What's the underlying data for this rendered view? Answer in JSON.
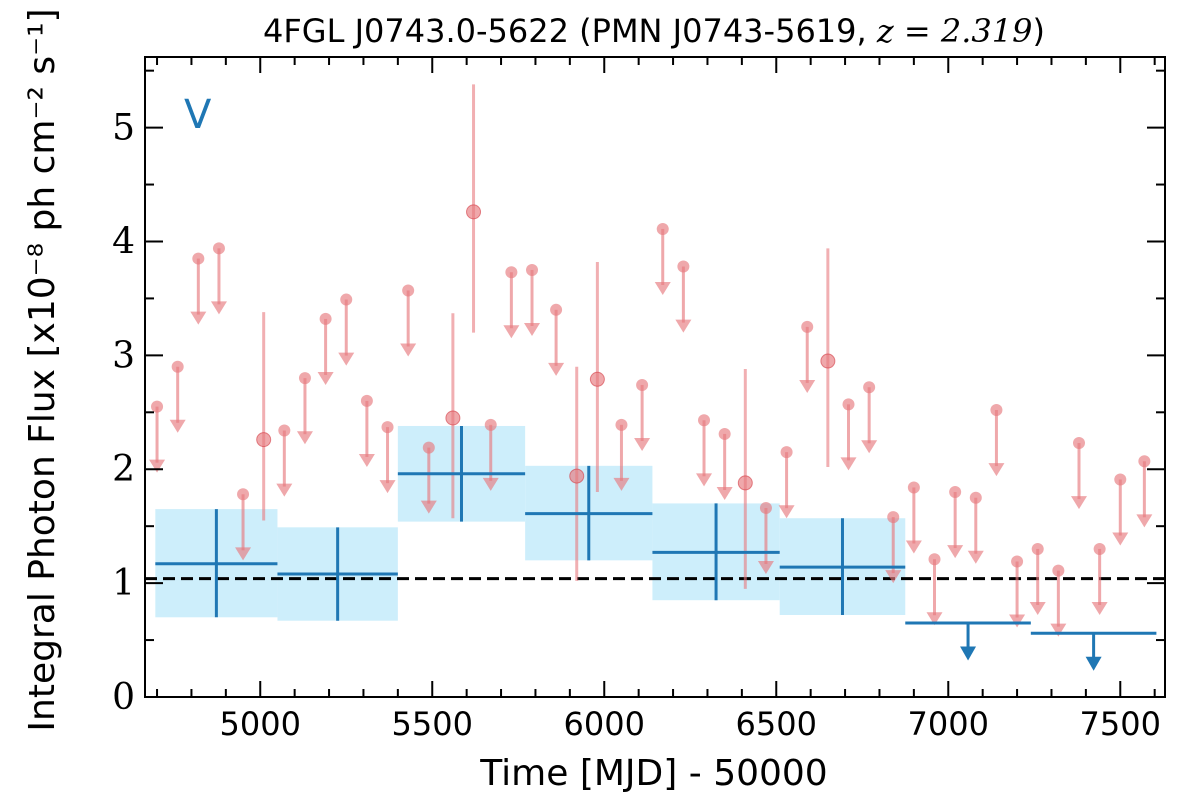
{
  "chart_data": {
    "type": "scatter",
    "title_prefix": "4FGL J0743.0-5622 (PMN J0743-5619, ",
    "title_math": "z = 2.319",
    "title_suffix": ")",
    "xlabel": "Time [MJD] - 50000",
    "ylabel": "Integral Photon Flux [x10⁻⁸ ph cm⁻² s⁻¹]",
    "panel_label": "V",
    "xlim": [
      4665,
      7630
    ],
    "ylim": [
      0,
      5.62
    ],
    "xticks": [
      5000,
      5500,
      6000,
      6500,
      7000,
      7500
    ],
    "xtick_labels": [
      "5000",
      "5500",
      "6000",
      "6500",
      "7000",
      "7500"
    ],
    "yticks": [
      0,
      1,
      2,
      3,
      4,
      5
    ],
    "ytick_labels": [
      "0",
      "1",
      "2",
      "3",
      "4",
      "5"
    ],
    "mean_flux": 1.04,
    "colors": {
      "short_bins": "#e77a7e",
      "long_bins": "#1f77b4",
      "long_band": "#cdeefb",
      "mean_line": "#000000"
    },
    "short_bins_upper_limits": [
      {
        "x": 4700,
        "y": 2.55
      },
      {
        "x": 4760,
        "y": 2.9
      },
      {
        "x": 4820,
        "y": 3.85
      },
      {
        "x": 4880,
        "y": 3.94
      },
      {
        "x": 4950,
        "y": 1.78
      },
      {
        "x": 5070,
        "y": 2.34
      },
      {
        "x": 5130,
        "y": 2.8
      },
      {
        "x": 5190,
        "y": 3.32
      },
      {
        "x": 5250,
        "y": 3.49
      },
      {
        "x": 5310,
        "y": 2.6
      },
      {
        "x": 5370,
        "y": 2.37
      },
      {
        "x": 5430,
        "y": 3.57
      },
      {
        "x": 5490,
        "y": 2.19
      },
      {
        "x": 5670,
        "y": 2.39
      },
      {
        "x": 5730,
        "y": 3.73
      },
      {
        "x": 5790,
        "y": 3.75
      },
      {
        "x": 5860,
        "y": 3.4
      },
      {
        "x": 6050,
        "y": 2.39
      },
      {
        "x": 6110,
        "y": 2.74
      },
      {
        "x": 6170,
        "y": 4.11
      },
      {
        "x": 6230,
        "y": 3.78
      },
      {
        "x": 6290,
        "y": 2.43
      },
      {
        "x": 6350,
        "y": 2.31
      },
      {
        "x": 6470,
        "y": 1.66
      },
      {
        "x": 6530,
        "y": 2.15
      },
      {
        "x": 6590,
        "y": 3.25
      },
      {
        "x": 6710,
        "y": 2.57
      },
      {
        "x": 6770,
        "y": 2.72
      },
      {
        "x": 6840,
        "y": 1.58
      },
      {
        "x": 6900,
        "y": 1.84
      },
      {
        "x": 6960,
        "y": 1.21
      },
      {
        "x": 7020,
        "y": 1.8
      },
      {
        "x": 7080,
        "y": 1.75
      },
      {
        "x": 7140,
        "y": 2.52
      },
      {
        "x": 7200,
        "y": 1.19
      },
      {
        "x": 7260,
        "y": 1.3
      },
      {
        "x": 7320,
        "y": 1.11
      },
      {
        "x": 7380,
        "y": 2.23
      },
      {
        "x": 7440,
        "y": 1.3
      },
      {
        "x": 7500,
        "y": 1.91
      },
      {
        "x": 7570,
        "y": 2.07
      }
    ],
    "short_bins_detections": [
      {
        "x": 5010,
        "y": 2.26,
        "ylo": 1.55,
        "yhi": 3.38
      },
      {
        "x": 5560,
        "y": 2.45,
        "ylo": 1.57,
        "yhi": 3.37
      },
      {
        "x": 5620,
        "y": 4.26,
        "ylo": 3.2,
        "yhi": 5.38
      },
      {
        "x": 5920,
        "y": 1.94,
        "ylo": 1.02,
        "yhi": 2.9
      },
      {
        "x": 5980,
        "y": 2.79,
        "ylo": 1.8,
        "yhi": 3.82
      },
      {
        "x": 6410,
        "y": 1.88,
        "ylo": 0.95,
        "yhi": 2.88
      },
      {
        "x": 6650,
        "y": 2.95,
        "ylo": 2.02,
        "yhi": 3.94
      }
    ],
    "long_bins": [
      {
        "x0": 4695,
        "x1": 5050,
        "y": 1.17,
        "ylo": 0.7,
        "yhi": 1.65
      },
      {
        "x0": 5050,
        "x1": 5400,
        "y": 1.08,
        "ylo": 0.67,
        "yhi": 1.49
      },
      {
        "x0": 5400,
        "x1": 5770,
        "y": 1.96,
        "ylo": 1.54,
        "yhi": 2.38
      },
      {
        "x0": 5770,
        "x1": 6140,
        "y": 1.61,
        "ylo": 1.2,
        "yhi": 2.03
      },
      {
        "x0": 6140,
        "x1": 6510,
        "y": 1.27,
        "ylo": 0.85,
        "yhi": 1.7
      },
      {
        "x0": 6510,
        "x1": 6875,
        "y": 1.14,
        "ylo": 0.72,
        "yhi": 1.57
      }
    ],
    "long_bins_upper_limits": [
      {
        "x0": 6875,
        "x1": 7240,
        "y": 0.65
      },
      {
        "x0": 7240,
        "x1": 7605,
        "y": 0.56
      }
    ]
  }
}
